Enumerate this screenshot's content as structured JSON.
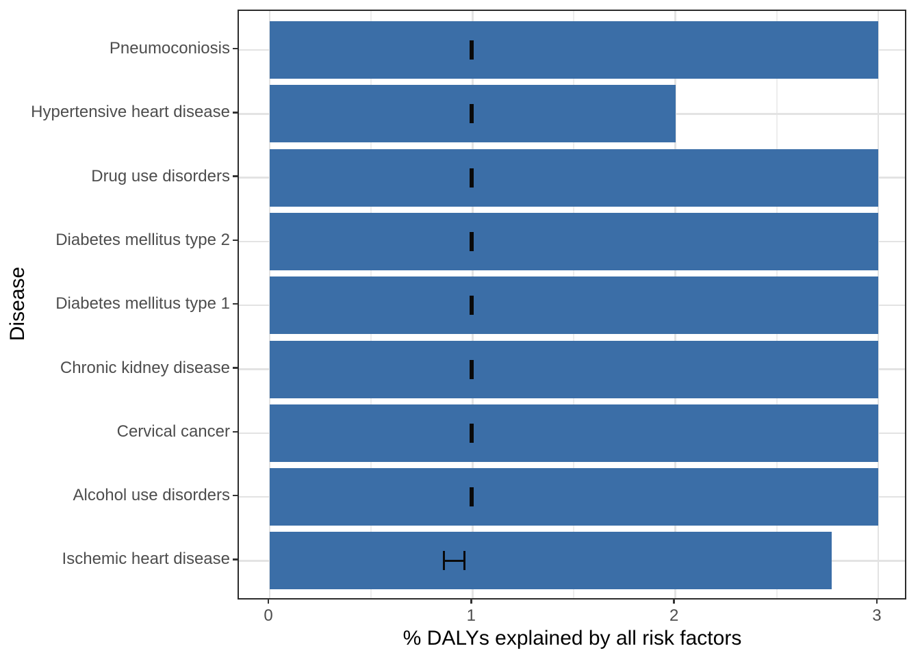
{
  "chart_data": {
    "type": "bar",
    "orientation": "horizontal",
    "title": "",
    "xlabel": "% DALYs explained by all risk factors",
    "ylabel": "Disease",
    "xlim": [
      -0.15,
      3.15
    ],
    "x_major_ticks": [
      0,
      1,
      2,
      3
    ],
    "x_minor_ticks": [
      0.5,
      1.5,
      2.5
    ],
    "grid": "vertical major+minor light gray, horizontal major at category centers",
    "legend_position": "none",
    "categories_top_to_bottom": [
      "Pneumoconiosis",
      "Hypertensive heart disease",
      "Drug use disorders",
      "Diabetes mellitus type 2",
      "Diabetes mellitus type 1",
      "Chronic kidney disease",
      "Cervical cancer",
      "Alcohol use disorders",
      "Ischemic heart disease"
    ],
    "values": [
      3.0,
      2.0,
      3.0,
      3.0,
      3.0,
      3.0,
      3.0,
      3.0,
      2.77
    ],
    "error_bars": [
      {
        "xmin": 0.99,
        "xmax": 1.0
      },
      {
        "xmin": 0.99,
        "xmax": 1.0
      },
      {
        "xmin": 0.99,
        "xmax": 1.0
      },
      {
        "xmin": 0.99,
        "xmax": 1.0
      },
      {
        "xmin": 0.99,
        "xmax": 1.0
      },
      {
        "xmin": 0.99,
        "xmax": 1.0
      },
      {
        "xmin": 0.99,
        "xmax": 1.0
      },
      {
        "xmin": 0.99,
        "xmax": 1.0
      },
      {
        "xmin": 0.86,
        "xmax": 0.96
      }
    ],
    "colors": {
      "bar_fill": "#3b6ea7",
      "error_bar": "#0a0a0a",
      "grid_major": "#e3e3e3",
      "grid_minor": "#ededed",
      "panel_border": "#2b2b2b",
      "axis_tick": "#333333",
      "tick_label": "#4d4d4d",
      "axis_title": "#000000",
      "background": "#ffffff"
    }
  }
}
